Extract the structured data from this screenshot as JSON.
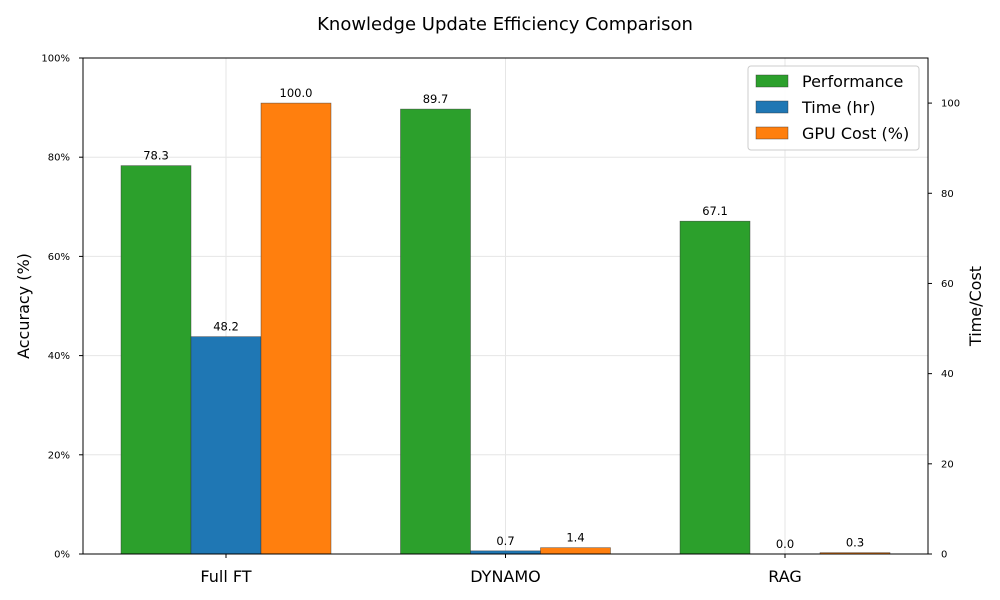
{
  "chart_data": {
    "type": "bar",
    "title": "Knowledge Update Efficiency Comparison",
    "categories": [
      "Full FT",
      "DYNAMO",
      "RAG"
    ],
    "ylabel": "Accuracy (%)",
    "ylabel_right": "Time/Cost",
    "ylim": [
      0,
      100
    ],
    "ylim_right": [
      0,
      110
    ],
    "y_ticks": [
      "0%",
      "20%",
      "40%",
      "60%",
      "80%",
      "100%"
    ],
    "y_tick_values": [
      0,
      20,
      40,
      60,
      80,
      100
    ],
    "y_right_ticks": [
      "0",
      "20",
      "40",
      "60",
      "80",
      "100"
    ],
    "y_right_tick_values": [
      0,
      20,
      40,
      60,
      80,
      100
    ],
    "grid": true,
    "legend_position": "top-right",
    "series": [
      {
        "name": "Performance",
        "axis": "left",
        "color": "#2ca02c",
        "values": [
          78.3,
          89.7,
          67.1
        ],
        "labels": [
          "78.3",
          "89.7",
          "67.1"
        ]
      },
      {
        "name": "Time (hr)",
        "axis": "right",
        "color": "#1f77b4",
        "values": [
          48.2,
          0.7,
          0.0
        ],
        "labels": [
          "48.2",
          "0.7",
          "0.0"
        ]
      },
      {
        "name": "GPU Cost (%)",
        "axis": "right",
        "color": "#ff7f0e",
        "values": [
          100.0,
          1.4,
          0.3
        ],
        "labels": [
          "100.0",
          "1.4",
          "0.3"
        ]
      }
    ]
  }
}
